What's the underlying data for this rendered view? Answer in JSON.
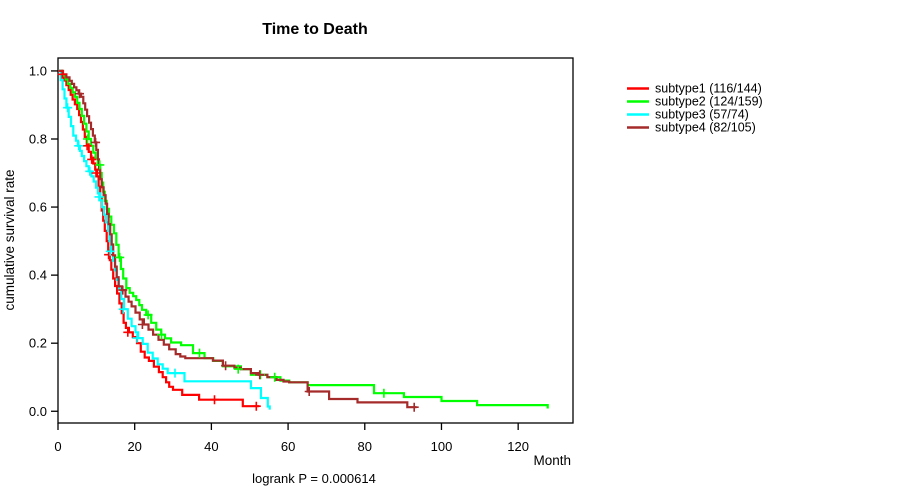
{
  "page": {
    "background": "#ffffff",
    "axis_color": "#000000"
  },
  "chart_data": {
    "type": "line",
    "subtype": "kaplan-meier-step-curves",
    "title": "Time to Death",
    "xlabel": "Month",
    "ylabel": "cumulative survival rate",
    "footnote": "logrank P = 0.000614",
    "grid": false,
    "legend_position": "right-outside",
    "xlim": [
      0,
      134.3
    ],
    "ylim": [
      -0.0345,
      1.038
    ],
    "xticks": [
      0,
      20,
      40,
      60,
      80,
      100,
      120
    ],
    "yticks": [
      "0.0",
      "0.2",
      "0.4",
      "0.6",
      "0.8",
      "1.0"
    ],
    "series": [
      {
        "name": "subtype1 (116/144)",
        "color": "#ff0000",
        "steps": [
          [
            0,
            1.0
          ],
          [
            0.8,
            0.986
          ],
          [
            1.6,
            0.972
          ],
          [
            2.2,
            0.958
          ],
          [
            2.8,
            0.944
          ],
          [
            3.3,
            0.93
          ],
          [
            3.8,
            0.916
          ],
          [
            4.4,
            0.902
          ],
          [
            5,
            0.888
          ],
          [
            5.5,
            0.87
          ],
          [
            6,
            0.85
          ],
          [
            6.5,
            0.828
          ],
          [
            7,
            0.806
          ],
          [
            7.5,
            0.784
          ],
          [
            8,
            0.762
          ],
          [
            8.6,
            0.745
          ],
          [
            9.2,
            0.728
          ],
          [
            9.7,
            0.71
          ],
          [
            10.2,
            0.69
          ],
          [
            10.6,
            0.66
          ],
          [
            11,
            0.625
          ],
          [
            11.4,
            0.59
          ],
          [
            11.8,
            0.56
          ],
          [
            12.2,
            0.53
          ],
          [
            12.7,
            0.5
          ],
          [
            13.1,
            0.472
          ],
          [
            13.5,
            0.444
          ],
          [
            13.9,
            0.416
          ],
          [
            14.4,
            0.39
          ],
          [
            14.9,
            0.368
          ],
          [
            15.4,
            0.346
          ],
          [
            16,
            0.317
          ],
          [
            16.6,
            0.288
          ],
          [
            17.1,
            0.26
          ],
          [
            17.7,
            0.245
          ],
          [
            18.5,
            0.232
          ],
          [
            19.5,
            0.218
          ],
          [
            20.6,
            0.2
          ],
          [
            21.6,
            0.175
          ],
          [
            22.6,
            0.158
          ],
          [
            23.7,
            0.148
          ],
          [
            25,
            0.131
          ],
          [
            26.3,
            0.115
          ],
          [
            27.3,
            0.1
          ],
          [
            28.2,
            0.085
          ],
          [
            29,
            0.072
          ],
          [
            30,
            0.063
          ],
          [
            32.4,
            0.048
          ],
          [
            36.8,
            0.034
          ],
          [
            48.2,
            0.015
          ],
          [
            52.5,
            0.015
          ]
        ],
        "censors": [
          [
            1.1,
            0.99
          ],
          [
            7.6,
            0.78
          ],
          [
            8.8,
            0.74
          ],
          [
            9.9,
            0.7
          ],
          [
            13.2,
            0.46
          ],
          [
            18.2,
            0.232
          ],
          [
            40.8,
            0.034
          ],
          [
            51.7,
            0.015
          ]
        ]
      },
      {
        "name": "subtype2 (124/159)",
        "color": "#00ff00",
        "steps": [
          [
            0,
            1.0
          ],
          [
            1,
            0.987
          ],
          [
            2,
            0.975
          ],
          [
            2.6,
            0.962
          ],
          [
            3.2,
            0.95
          ],
          [
            3.8,
            0.937
          ],
          [
            4.4,
            0.924
          ],
          [
            5,
            0.906
          ],
          [
            5.6,
            0.888
          ],
          [
            6.2,
            0.868
          ],
          [
            6.8,
            0.845
          ],
          [
            7.4,
            0.822
          ],
          [
            8,
            0.8
          ],
          [
            8.6,
            0.78
          ],
          [
            9.2,
            0.76
          ],
          [
            9.8,
            0.742
          ],
          [
            10.4,
            0.724
          ],
          [
            11,
            0.7
          ],
          [
            11.4,
            0.672
          ],
          [
            11.8,
            0.645
          ],
          [
            12.2,
            0.618
          ],
          [
            12.7,
            0.595
          ],
          [
            13.3,
            0.572
          ],
          [
            13.9,
            0.548
          ],
          [
            14.6,
            0.523
          ],
          [
            15.2,
            0.489
          ],
          [
            15.8,
            0.452
          ],
          [
            16.4,
            0.418
          ],
          [
            17,
            0.39
          ],
          [
            17.8,
            0.362
          ],
          [
            18.7,
            0.348
          ],
          [
            19.6,
            0.338
          ],
          [
            20.4,
            0.327
          ],
          [
            21.2,
            0.312
          ],
          [
            21.9,
            0.298
          ],
          [
            23,
            0.283
          ],
          [
            24.3,
            0.26
          ],
          [
            25.6,
            0.24
          ],
          [
            26.9,
            0.225
          ],
          [
            27.9,
            0.214
          ],
          [
            29.5,
            0.202
          ],
          [
            32.1,
            0.194
          ],
          [
            35.2,
            0.171
          ],
          [
            38.2,
            0.156
          ],
          [
            40.5,
            0.148
          ],
          [
            43,
            0.132
          ],
          [
            47.7,
            0.124
          ],
          [
            50.3,
            0.107
          ],
          [
            54.6,
            0.1
          ],
          [
            58,
            0.09
          ],
          [
            60.3,
            0.085
          ],
          [
            65.1,
            0.077
          ],
          [
            82.4,
            0.053
          ],
          [
            90.2,
            0.042
          ],
          [
            100,
            0.03
          ],
          [
            109.3,
            0.018
          ],
          [
            127.7,
            0.008
          ]
        ],
        "censors": [
          [
            7.7,
            0.8
          ],
          [
            10.9,
            0.724
          ],
          [
            16.1,
            0.452
          ],
          [
            23.5,
            0.283
          ],
          [
            27,
            0.225
          ],
          [
            36.9,
            0.171
          ],
          [
            47,
            0.124
          ],
          [
            52.8,
            0.107
          ],
          [
            56.5,
            0.1
          ],
          [
            85,
            0.053
          ]
        ]
      },
      {
        "name": "subtype3 (57/74)",
        "color": "#00ffff",
        "steps": [
          [
            0,
            1.0
          ],
          [
            0.7,
            0.973
          ],
          [
            1.2,
            0.946
          ],
          [
            1.7,
            0.919
          ],
          [
            2.2,
            0.892
          ],
          [
            2.8,
            0.865
          ],
          [
            3.4,
            0.838
          ],
          [
            4,
            0.81
          ],
          [
            4.7,
            0.795
          ],
          [
            5.2,
            0.78
          ],
          [
            5.7,
            0.765
          ],
          [
            6.2,
            0.75
          ],
          [
            6.8,
            0.735
          ],
          [
            7.4,
            0.72
          ],
          [
            8,
            0.705
          ],
          [
            8.7,
            0.69
          ],
          [
            9.3,
            0.675
          ],
          [
            9.9,
            0.657
          ],
          [
            10.4,
            0.64
          ],
          [
            11,
            0.62
          ],
          [
            11.5,
            0.6
          ],
          [
            12,
            0.578
          ],
          [
            12.5,
            0.555
          ],
          [
            13,
            0.53
          ],
          [
            13.4,
            0.5
          ],
          [
            13.8,
            0.47
          ],
          [
            14.3,
            0.442
          ],
          [
            14.8,
            0.414
          ],
          [
            15.3,
            0.386
          ],
          [
            15.9,
            0.358
          ],
          [
            16.5,
            0.33
          ],
          [
            17.2,
            0.3
          ],
          [
            18.2,
            0.272
          ],
          [
            19.2,
            0.25
          ],
          [
            20.2,
            0.232
          ],
          [
            20.9,
            0.215
          ],
          [
            22.1,
            0.198
          ],
          [
            23.4,
            0.172
          ],
          [
            24.7,
            0.155
          ],
          [
            26,
            0.138
          ],
          [
            27.3,
            0.125
          ],
          [
            28.6,
            0.112
          ],
          [
            33,
            0.088
          ],
          [
            50.3,
            0.068
          ],
          [
            52.9,
            0.039
          ],
          [
            54.7,
            0.014
          ],
          [
            55.2,
            0.005
          ]
        ],
        "censors": [
          [
            2.5,
            0.892
          ],
          [
            5.4,
            0.78
          ],
          [
            8.3,
            0.705
          ],
          [
            10.7,
            0.63
          ],
          [
            13.6,
            0.47
          ],
          [
            17,
            0.3
          ],
          [
            20.6,
            0.215
          ],
          [
            30.5,
            0.112
          ]
        ]
      },
      {
        "name": "subtype4 (82/105)",
        "color": "#a52a2a",
        "steps": [
          [
            0,
            1.0
          ],
          [
            1.3,
            0.99
          ],
          [
            2.2,
            0.981
          ],
          [
            3,
            0.971
          ],
          [
            3.6,
            0.962
          ],
          [
            4.2,
            0.952
          ],
          [
            4.8,
            0.943
          ],
          [
            5.4,
            0.933
          ],
          [
            6,
            0.924
          ],
          [
            6.6,
            0.905
          ],
          [
            7.1,
            0.886
          ],
          [
            7.6,
            0.867
          ],
          [
            8.1,
            0.848
          ],
          [
            8.6,
            0.829
          ],
          [
            9.1,
            0.81
          ],
          [
            9.6,
            0.79
          ],
          [
            10,
            0.768
          ],
          [
            10.4,
            0.74
          ],
          [
            10.7,
            0.71
          ],
          [
            11,
            0.682
          ],
          [
            11.4,
            0.658
          ],
          [
            11.9,
            0.635
          ],
          [
            12.4,
            0.61
          ],
          [
            12.8,
            0.58
          ],
          [
            13.2,
            0.55
          ],
          [
            13.6,
            0.52
          ],
          [
            14,
            0.49
          ],
          [
            14.4,
            0.458
          ],
          [
            14.9,
            0.425
          ],
          [
            15.3,
            0.394
          ],
          [
            15.8,
            0.367
          ],
          [
            16.7,
            0.356
          ],
          [
            17.6,
            0.337
          ],
          [
            18.4,
            0.322
          ],
          [
            19.2,
            0.308
          ],
          [
            20.2,
            0.29
          ],
          [
            21.3,
            0.27
          ],
          [
            22.4,
            0.255
          ],
          [
            23.6,
            0.24
          ],
          [
            24.8,
            0.225
          ],
          [
            26.2,
            0.21
          ],
          [
            27.6,
            0.196
          ],
          [
            29,
            0.182
          ],
          [
            30.7,
            0.168
          ],
          [
            31.9,
            0.161
          ],
          [
            33.2,
            0.156
          ],
          [
            40.4,
            0.149
          ],
          [
            43,
            0.134
          ],
          [
            46,
            0.128
          ],
          [
            47.7,
            0.124
          ],
          [
            50.3,
            0.112
          ],
          [
            52.3,
            0.107
          ],
          [
            54.6,
            0.1
          ],
          [
            57,
            0.092
          ],
          [
            58.8,
            0.0875
          ],
          [
            60.3,
            0.085
          ],
          [
            65.1,
            0.058
          ],
          [
            70.7,
            0.036
          ],
          [
            78.1,
            0.026
          ],
          [
            91.1,
            0.012
          ],
          [
            93.5,
            0.012
          ]
        ],
        "censors": [
          [
            5.6,
            0.933
          ],
          [
            9.8,
            0.79
          ],
          [
            16.9,
            0.356
          ],
          [
            22,
            0.255
          ],
          [
            43.7,
            0.134
          ],
          [
            52.6,
            0.107
          ],
          [
            65.5,
            0.058
          ],
          [
            92.9,
            0.012
          ]
        ]
      }
    ]
  }
}
